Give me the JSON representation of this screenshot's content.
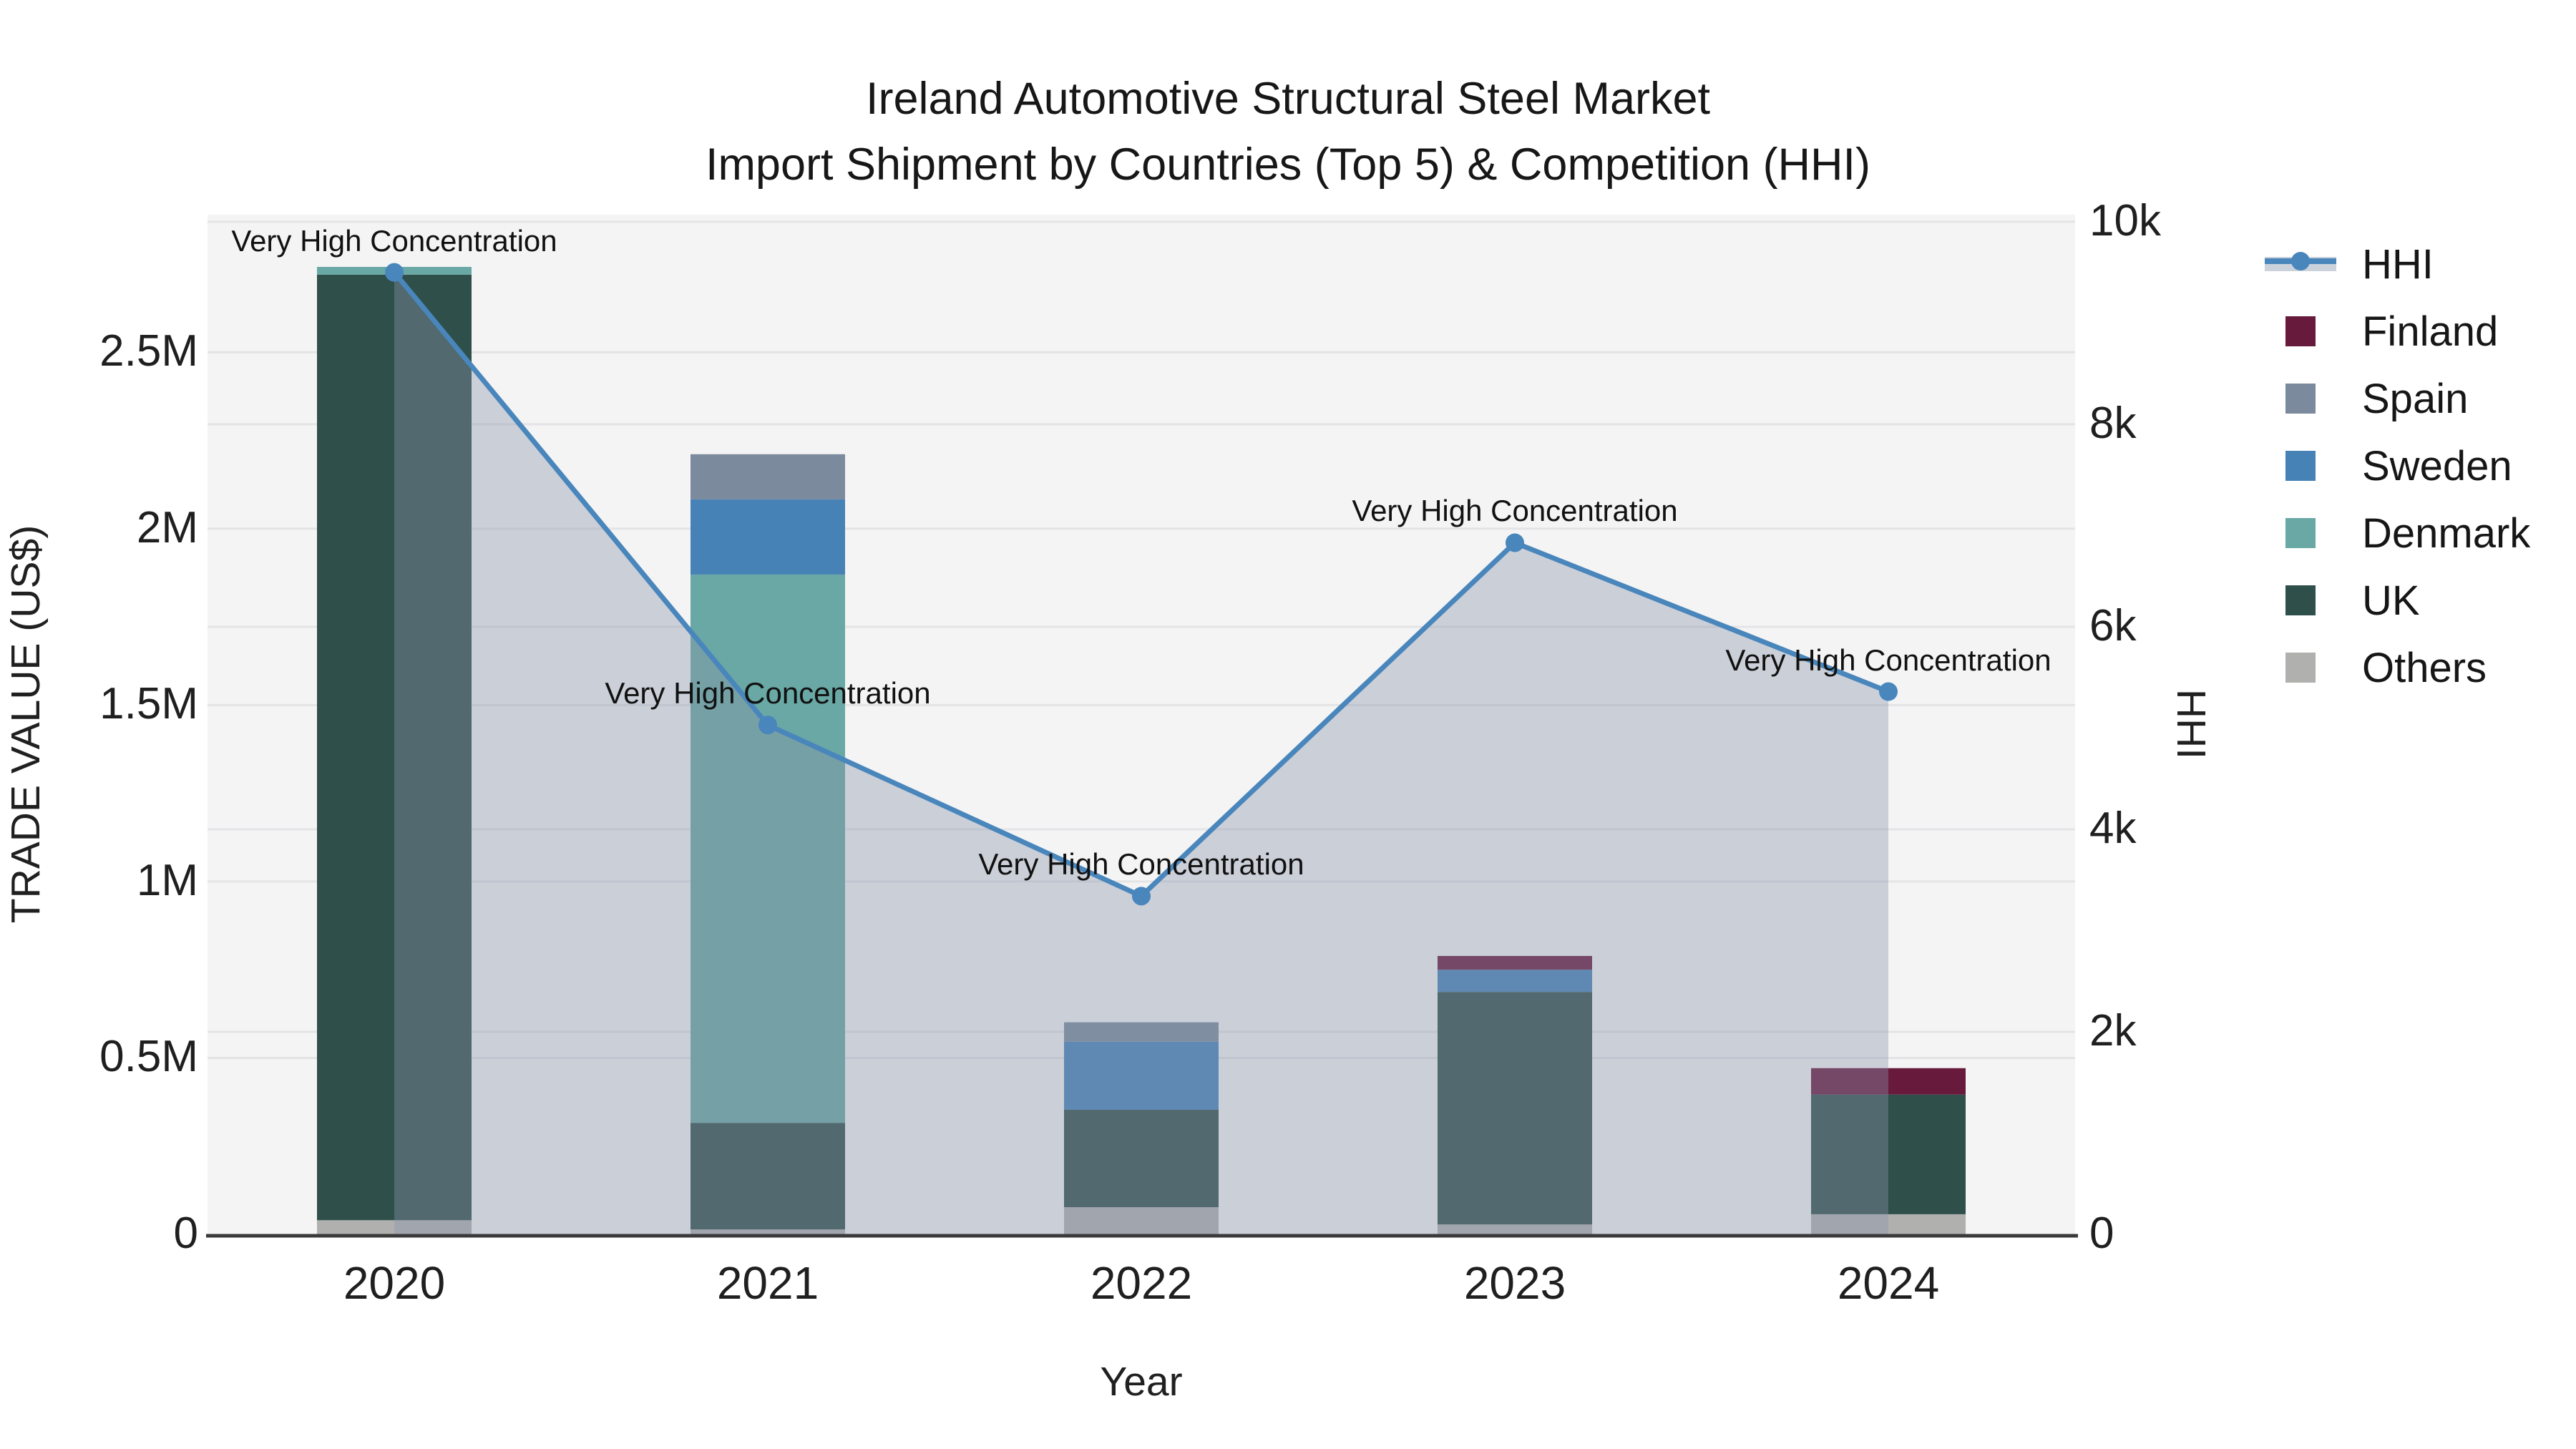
{
  "title": {
    "line1": "Ireland Automotive Structural Steel Market",
    "line2": "Import Shipment by Countries (Top 5) & Competition (HHI)"
  },
  "axes": {
    "x": {
      "label": "Year"
    },
    "y_left": {
      "label": "TRADE VALUE (US$)",
      "tick_values": [
        0,
        500000,
        1000000,
        1500000,
        2000000,
        2500000
      ],
      "tick_labels": [
        "0",
        "0.5M",
        "1M",
        "1.5M",
        "2M",
        "2.5M"
      ],
      "max": 2890000
    },
    "y_right": {
      "label": "HHI",
      "tick_values": [
        0,
        2000,
        4000,
        6000,
        8000,
        10000
      ],
      "tick_labels": [
        "0",
        "2k",
        "4k",
        "6k",
        "8k",
        "10k"
      ],
      "max": 10070
    }
  },
  "chart_data": {
    "type": "bar+line dual-axis (stacked bars, line on secondary axis with area fill)",
    "categories": [
      "2020",
      "2021",
      "2022",
      "2023",
      "2024"
    ],
    "xlabel": "Year",
    "ylabel_left": "TRADE VALUE (US$)",
    "ylabel_right": "HHI",
    "ylim_left": [
      0,
      2890000
    ],
    "ylim_right": [
      0,
      10070
    ],
    "grid": "both axes, light horizontal gridlines",
    "stack_order_bottom_to_top": [
      "Others",
      "UK",
      "Denmark",
      "Sweden",
      "Spain",
      "Finland"
    ],
    "series": [
      {
        "name": "Finland",
        "color": "#681a3c",
        "values": [
          0,
          0,
          0,
          39000,
          75000
        ]
      },
      {
        "name": "Spain",
        "color": "#7b8b9d",
        "values": [
          0,
          128000,
          55000,
          0,
          0
        ]
      },
      {
        "name": "Sweden",
        "color": "#4682b6",
        "values": [
          0,
          213000,
          193000,
          63000,
          0
        ]
      },
      {
        "name": "Denmark",
        "color": "#69a8a4",
        "values": [
          22000,
          1554000,
          0,
          0,
          0
        ]
      },
      {
        "name": "UK",
        "color": "#2f4f4b",
        "values": [
          2680000,
          302000,
          276000,
          659000,
          339000
        ]
      },
      {
        "name": "Others",
        "color": "#b0b0ae",
        "values": [
          40000,
          14000,
          77000,
          28000,
          57000
        ]
      }
    ],
    "bar_totals": [
      2742000,
      2211000,
      601000,
      789000,
      471000
    ],
    "line": {
      "name": "HHI",
      "axis": "right",
      "color": "#4986bc",
      "fill": "rgba(136,148,170,0.38)",
      "values": [
        9500,
        5030,
        3340,
        6830,
        5360
      ]
    },
    "annotations": [
      {
        "category": "2020",
        "text": "Very High Concentration"
      },
      {
        "category": "2021",
        "text": "Very High Concentration"
      },
      {
        "category": "2022",
        "text": "Very High Concentration"
      },
      {
        "category": "2023",
        "text": "Very High Concentration"
      },
      {
        "category": "2024",
        "text": "Very High Concentration"
      }
    ],
    "legend_position": "right"
  },
  "legend": {
    "items": [
      {
        "label": "HHI",
        "type": "line",
        "color": "#4986bc",
        "band_color": "#ccd2dc"
      },
      {
        "label": "Finland",
        "type": "swatch",
        "color": "#681a3c"
      },
      {
        "label": "Spain",
        "type": "swatch",
        "color": "#7b8b9d"
      },
      {
        "label": "Sweden",
        "type": "swatch",
        "color": "#4682b6"
      },
      {
        "label": "Denmark",
        "type": "swatch",
        "color": "#69a8a4"
      },
      {
        "label": "UK",
        "type": "swatch",
        "color": "#2f4f4b"
      },
      {
        "label": "Others",
        "type": "swatch",
        "color": "#b0b0ae"
      }
    ]
  },
  "colors": {
    "plot_bg": "#f4f4f4",
    "gridline": "#e4e4e7",
    "axis_line": "#3a3a3a",
    "text": "#1c1c1c"
  }
}
